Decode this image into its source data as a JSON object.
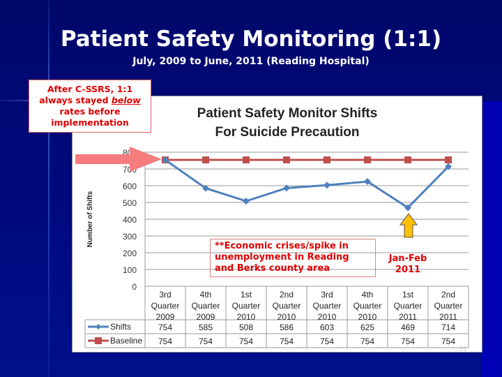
{
  "slide": {
    "title": "Patient Safety Monitoring (1:1)",
    "subtitle": "July, 2009 to June, 2011 (Reading Hospital)",
    "page_number": "53"
  },
  "callout": {
    "line1": "After C-SSRS, 1:1",
    "line2a": "always stayed ",
    "line2b": "below",
    "line3": "rates before",
    "line4": "implementation"
  },
  "note": "**Economic crises/spike in unemployment in Reading and Berks county area",
  "jan_note": {
    "line1": "Jan-Feb",
    "line2": "2011"
  },
  "colors": {
    "shifts": "#4f81bd",
    "baseline": "#c0504d",
    "annotation": "#e00000",
    "arrow_pink": "#f47c7c",
    "arrow_yellow": "#ffc000"
  },
  "chart_data": {
    "type": "line",
    "title_line1": "Patient Safety Monitor Shifts",
    "title_line2": "For Suicide Precaution",
    "ylabel": "Number of Shifts",
    "ylim": [
      0,
      800
    ],
    "yticks": [
      0,
      100,
      200,
      300,
      400,
      500,
      600,
      700,
      800
    ],
    "grid": true,
    "legend": "data-table",
    "categories": [
      [
        "3rd",
        "Quarter",
        "2009"
      ],
      [
        "4th",
        "Quarter",
        "2009"
      ],
      [
        "1st",
        "Quarter",
        "2010"
      ],
      [
        "2nd",
        "Quarter",
        "2010"
      ],
      [
        "3rd",
        "Quarter",
        "2010"
      ],
      [
        "4th",
        "Quarter",
        "2010"
      ],
      [
        "1st",
        "Quarter",
        "2011"
      ],
      [
        "2nd",
        "Quarter",
        "2011"
      ]
    ],
    "series": [
      {
        "name": "Shifts",
        "marker": "diamond",
        "values": [
          754,
          585,
          508,
          586,
          603,
          625,
          469,
          714
        ]
      },
      {
        "name": "Baseline",
        "marker": "square",
        "values": [
          754,
          754,
          754,
          754,
          754,
          754,
          754,
          754
        ]
      }
    ]
  }
}
